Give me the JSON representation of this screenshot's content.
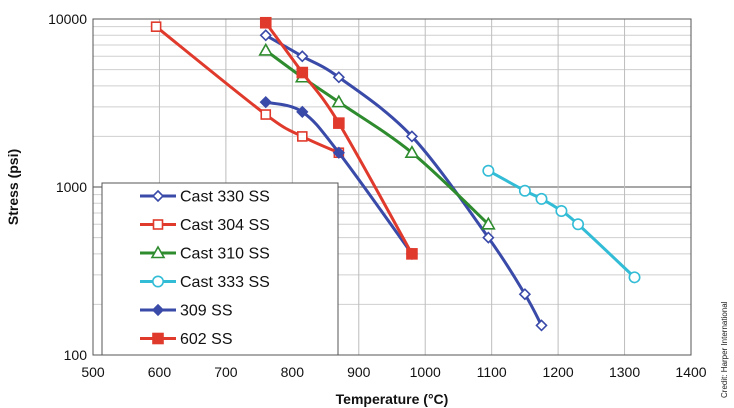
{
  "chart_data": {
    "type": "line",
    "xlabel": "Temperature (°C)",
    "ylabel": "Stress (psi)",
    "xlim": [
      500,
      1400
    ],
    "ylim": [
      100,
      10000
    ],
    "yscale": "log",
    "x_ticks": [
      "500",
      "600",
      "700",
      "800",
      "900",
      "1000",
      "1100",
      "1200",
      "1300",
      "1400"
    ],
    "y_ticks": [
      "100",
      "1000",
      "10000"
    ],
    "grid": true,
    "legend_position": "bottom-left",
    "credit": "Credit: Harper International",
    "series": [
      {
        "name": "Cast 330 SS",
        "color": "#3a4aa8",
        "marker": "diamond-open",
        "x": [
          760,
          815,
          870,
          980,
          1095,
          1150,
          1175
        ],
        "y": [
          8000,
          6000,
          4500,
          2000,
          500,
          230,
          150
        ]
      },
      {
        "name": "Cast 304 SS",
        "color": "#e03a2c",
        "marker": "square-open",
        "x": [
          595,
          760,
          815,
          870
        ],
        "y": [
          9000,
          2700,
          2000,
          1600
        ]
      },
      {
        "name": "Cast 310 SS",
        "color": "#2e8b2e",
        "marker": "triangle-open",
        "x": [
          760,
          815,
          870,
          980,
          1095
        ],
        "y": [
          6500,
          4500,
          3200,
          1600,
          600
        ]
      },
      {
        "name": "Cast 333 SS",
        "color": "#33bcd6",
        "marker": "circle-open",
        "x": [
          1095,
          1150,
          1175,
          1205,
          1230,
          1315
        ],
        "y": [
          1250,
          950,
          850,
          720,
          600,
          290
        ]
      },
      {
        "name": "309 SS",
        "color": "#3a4aa8",
        "marker": "diamond-filled",
        "x": [
          760,
          815,
          870,
          980
        ],
        "y": [
          3200,
          2800,
          1600,
          400
        ]
      },
      {
        "name": "602 SS",
        "color": "#e03a2c",
        "marker": "square-filled",
        "x": [
          760,
          815,
          870,
          980
        ],
        "y": [
          9500,
          4800,
          2400,
          400
        ]
      }
    ]
  }
}
